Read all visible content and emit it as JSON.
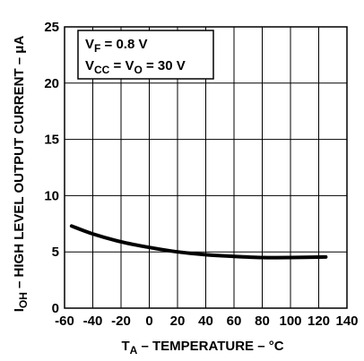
{
  "chart_data": {
    "type": "line",
    "xlabel": {
      "main": "T",
      "sub": "A",
      "rest": " – TEMPERATURE – °C"
    },
    "ylabel": {
      "main": "I",
      "sub": "OH",
      "rest": " – HIGH LEVEL OUTPUT CURRENT – μA"
    },
    "xlim": [
      -60,
      140
    ],
    "ylim": [
      0,
      25
    ],
    "x_ticks": [
      -60,
      -40,
      -20,
      0,
      20,
      40,
      60,
      80,
      100,
      120,
      140
    ],
    "x_tick_labels": [
      "-60",
      "-40",
      "-20",
      "0",
      "20",
      "40",
      "60",
      "80",
      "100",
      "120",
      "140"
    ],
    "y_ticks": [
      0,
      5,
      10,
      15,
      20,
      25
    ],
    "y_tick_labels": [
      "0",
      "5",
      "10",
      "15",
      "20",
      "25"
    ],
    "grid": true,
    "conditions": [
      {
        "main": "V",
        "sub": "F",
        "rest": " = 0.8 V"
      },
      {
        "main": "V",
        "sub": "CC",
        "mid": " = V",
        "sub2": "O",
        "rest": " = 30 V"
      }
    ],
    "series": [
      {
        "x": [
          -55,
          -40,
          -20,
          0,
          20,
          40,
          60,
          80,
          100,
          125
        ],
        "y": [
          7.3,
          6.6,
          5.9,
          5.4,
          5.0,
          4.75,
          4.6,
          4.5,
          4.5,
          4.55
        ]
      }
    ]
  }
}
